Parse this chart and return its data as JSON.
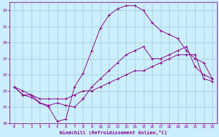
{
  "xlabel": "Windchill (Refroidissement éolien,°C)",
  "bg_color": "#cceeff",
  "line_color": "#880088",
  "grid_color": "#99cccc",
  "xlim": [
    -0.5,
    23.5
  ],
  "ylim": [
    19,
    34
  ],
  "xticks": [
    0,
    1,
    2,
    3,
    4,
    5,
    6,
    7,
    8,
    9,
    10,
    11,
    12,
    13,
    14,
    15,
    16,
    17,
    18,
    19,
    20,
    21,
    22,
    23
  ],
  "yticks": [
    19,
    21,
    23,
    25,
    27,
    29,
    31,
    33
  ],
  "line1_x": [
    0,
    1,
    2,
    3,
    4,
    5,
    6,
    7,
    8,
    9,
    10,
    11,
    12,
    13,
    14,
    15,
    16,
    17,
    18,
    19,
    20,
    21,
    22,
    23
  ],
  "line1_y": [
    23.5,
    23.0,
    22.5,
    21.5,
    21.0,
    19.2,
    19.5,
    23.5,
    25.2,
    28.0,
    30.8,
    32.4,
    33.2,
    33.6,
    33.6,
    33.0,
    31.5,
    30.5,
    30.0,
    29.5,
    28.0,
    27.0,
    26.5,
    24.5
  ],
  "line2_x": [
    0,
    1,
    2,
    3,
    4,
    5,
    6,
    7,
    8,
    9,
    10,
    11,
    12,
    13,
    14,
    15,
    16,
    17,
    18,
    19,
    20,
    21,
    22,
    23
  ],
  "line2_y": [
    23.5,
    22.5,
    22.2,
    21.5,
    21.2,
    21.5,
    21.2,
    21.0,
    22.0,
    23.5,
    24.5,
    25.5,
    26.5,
    27.5,
    28.0,
    28.5,
    27.0,
    27.0,
    27.5,
    28.0,
    28.5,
    26.0,
    25.0,
    24.5
  ],
  "line3_x": [
    0,
    1,
    2,
    3,
    4,
    5,
    6,
    7,
    8,
    9,
    10,
    11,
    12,
    13,
    14,
    15,
    16,
    17,
    18,
    19,
    20,
    21,
    22,
    23
  ],
  "line3_y": [
    23.5,
    22.5,
    22.5,
    22.0,
    22.0,
    22.0,
    22.0,
    22.5,
    23.0,
    23.0,
    23.5,
    24.0,
    24.5,
    25.0,
    25.5,
    25.5,
    26.0,
    26.5,
    27.0,
    27.5,
    27.5,
    27.5,
    24.5,
    24.2
  ]
}
